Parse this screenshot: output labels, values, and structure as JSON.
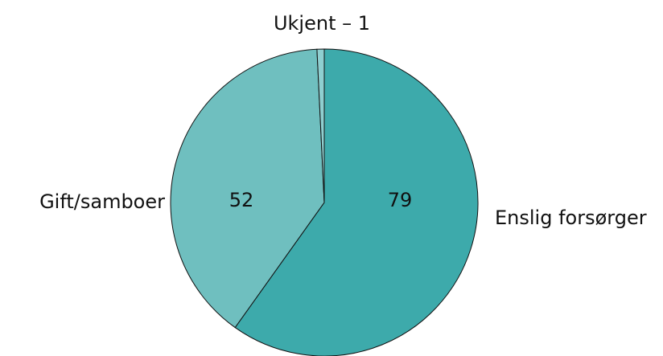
{
  "chart_data": {
    "type": "pie",
    "categories": [
      "Enslig forsørger",
      "Gift/samboer",
      "Ukjent – 1"
    ],
    "values": [
      79,
      52,
      1
    ],
    "colors": [
      "#3daaab",
      "#6fbfbf",
      "#8fcfd0"
    ]
  }
}
